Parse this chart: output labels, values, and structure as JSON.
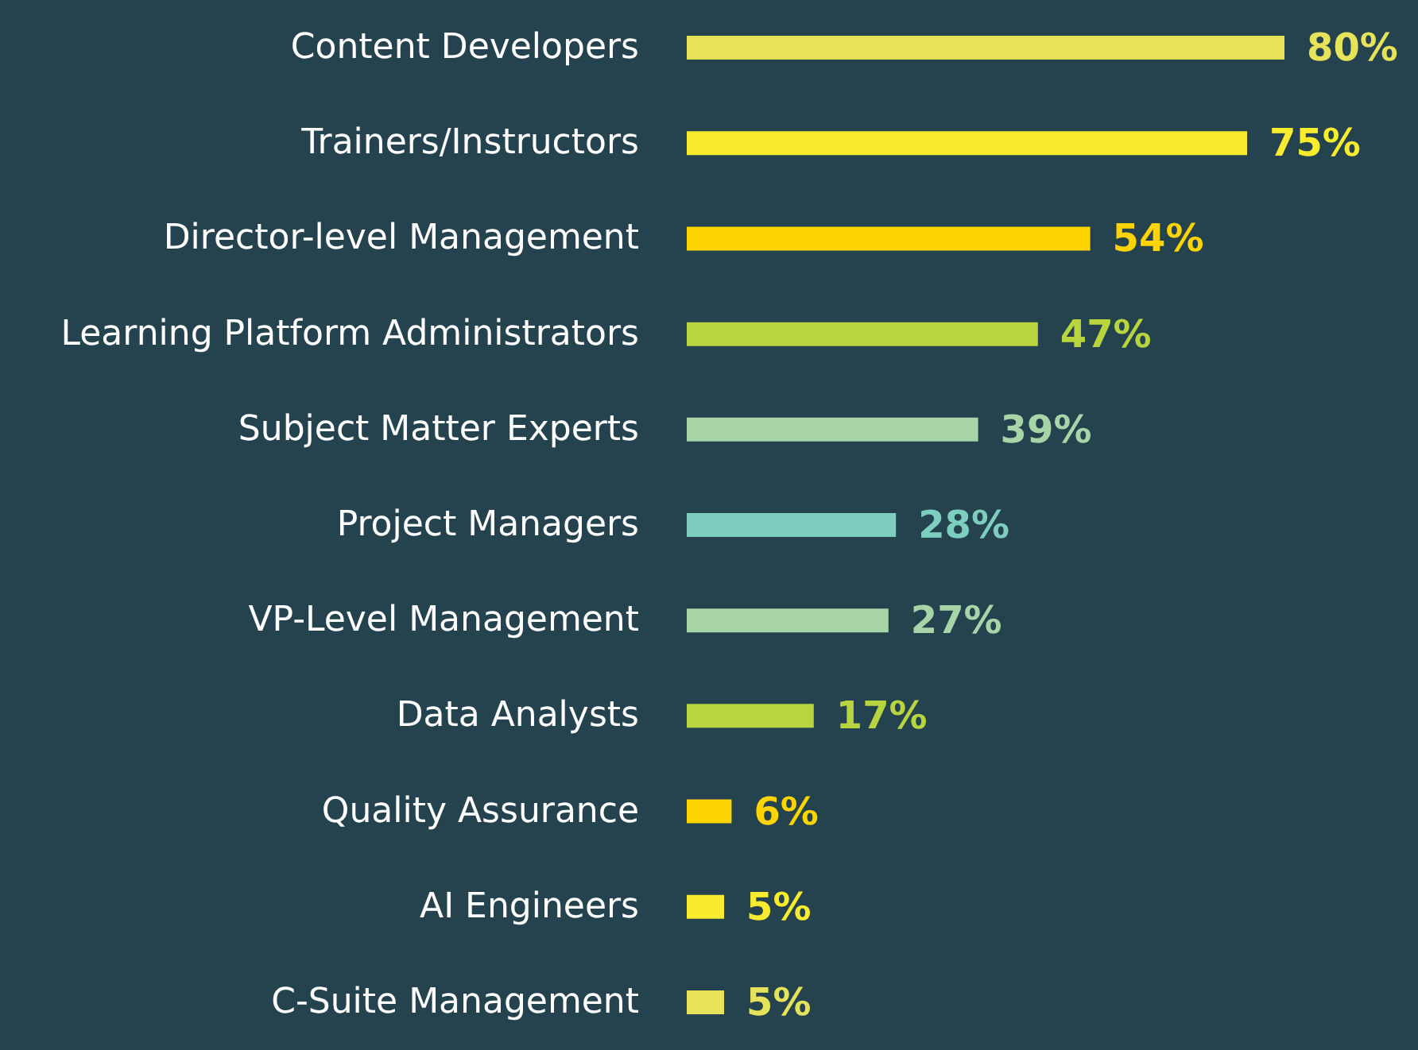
{
  "chart_data": {
    "type": "bar",
    "orientation": "horizontal",
    "categories": [
      "Content Developers",
      "Trainers/Instructors",
      "Director-level Management",
      "Learning Platform Administrators",
      "Subject Matter Experts",
      "Project Managers",
      "VP-Level Management",
      "Data Analysts",
      "Quality Assurance",
      "AI Engineers",
      "C-Suite Management"
    ],
    "values": [
      80,
      75,
      54,
      47,
      39,
      28,
      27,
      17,
      6,
      5,
      5
    ],
    "colors": [
      "#e6e35a",
      "#f9ec2f",
      "#ffd400",
      "#b8d43f",
      "#a8d5a8",
      "#7ecec0",
      "#a8d5a8",
      "#b8d43f",
      "#ffd400",
      "#f9ec2f",
      "#e6e35a"
    ],
    "value_labels": [
      "80%",
      "75%",
      "54%",
      "47%",
      "39%",
      "28%",
      "27%",
      "17%",
      "6%",
      "5%",
      "5%"
    ]
  }
}
